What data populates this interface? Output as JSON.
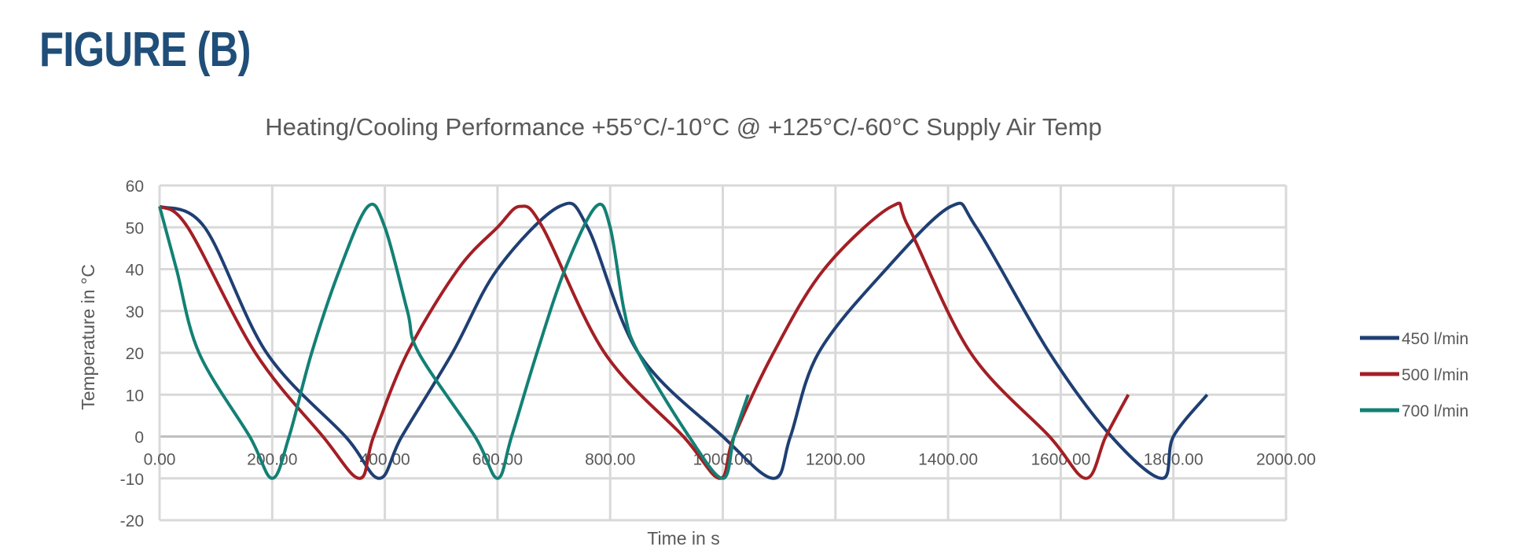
{
  "figure_label": "FIGURE (B)",
  "chart_data": {
    "type": "line",
    "title": "Heating/Cooling Performance +55°C/-10°C @ +125°C/-60°C Supply Air Temp",
    "xlabel": "Time in s",
    "ylabel": "Temperature in °C",
    "xlim": [
      0,
      2000
    ],
    "ylim": [
      -20,
      60
    ],
    "xticks": [
      "0.00",
      "200.00",
      "400.00",
      "600.00",
      "800.00",
      "1000.00",
      "1200.00",
      "1400.00",
      "1600.00",
      "1800.00",
      "2000.00"
    ],
    "yticks": [
      "60",
      "50",
      "40",
      "30",
      "20",
      "10",
      "0",
      "-10",
      "-20"
    ],
    "grid": true,
    "legend_position": "right",
    "series": [
      {
        "name": "450 l/min",
        "color": "#1f3f73",
        "x": [
          0,
          80,
          190,
          330,
          390,
          430,
          520,
          600,
          710,
          760,
          850,
          1000,
          1090,
          1120,
          1170,
          1290,
          1405,
          1450,
          1580,
          1690,
          1780,
          1800,
          1860
        ],
        "y": [
          55,
          50,
          20,
          0,
          -10,
          0,
          20,
          40,
          55,
          50,
          20,
          0,
          -10,
          0,
          20,
          40,
          55,
          50,
          20,
          0,
          -10,
          0,
          10
        ]
      },
      {
        "name": "500 l/min",
        "color": "#a31f25",
        "x": [
          0,
          50,
          170,
          290,
          355,
          380,
          440,
          530,
          600,
          640,
          680,
          790,
          930,
          995,
          1020,
          1090,
          1180,
          1300,
          1330,
          1440,
          1580,
          1645,
          1680,
          1720
        ],
        "y": [
          55,
          50,
          20,
          0,
          -10,
          0,
          20,
          40,
          50,
          55,
          50,
          20,
          0,
          -10,
          0,
          20,
          40,
          55,
          50,
          20,
          0,
          -10,
          0,
          10
        ]
      },
      {
        "name": "700 l/min",
        "color": "#138075",
        "x": [
          0,
          30,
          70,
          160,
          200,
          230,
          270,
          320,
          370,
          400,
          440,
          460,
          560,
          600,
          625,
          670,
          720,
          775,
          800,
          825,
          850,
          940,
          1000,
          1020,
          1045
        ],
        "y": [
          55,
          40,
          20,
          0,
          -10,
          0,
          20,
          40,
          55,
          50,
          30,
          20,
          0,
          -10,
          0,
          20,
          40,
          55,
          50,
          30,
          20,
          0,
          -10,
          0,
          10
        ]
      }
    ]
  }
}
